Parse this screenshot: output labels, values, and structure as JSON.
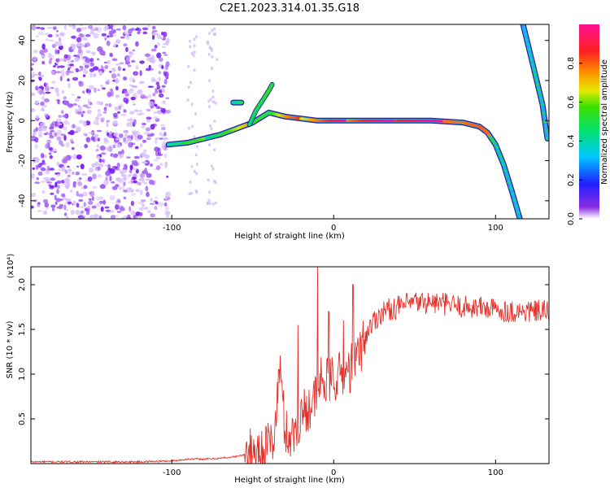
{
  "title": "C2E1.2023.314.01.35.G18",
  "colors": {
    "signal_line": "#e8302a",
    "speckle_purple": "#7a1ff0",
    "axis": "#000000"
  },
  "chart_data": [
    {
      "type": "heatmap",
      "id": "spectrogram",
      "xlabel": "Height of straight line (km)",
      "ylabel": "Frequency (Hz)",
      "xlim": [
        -187,
        133
      ],
      "ylim": [
        -49,
        48
      ],
      "xticks": [
        -100,
        0,
        100
      ],
      "yticks": [
        -40,
        -20,
        0,
        20,
        40
      ],
      "colorbar": {
        "label": "Normalized spectral amplitude",
        "range": [
          0.0,
          1.0
        ],
        "ticks": [
          0.0,
          0.2,
          0.4,
          0.6,
          0.8
        ],
        "colormap": "purple-blue-cyan-green-yellow-orange-red-pink"
      },
      "noise_region_x": [
        -187,
        -102
      ],
      "main_trace": {
        "x": [
          -102,
          -90,
          -80,
          -70,
          -60,
          -50,
          -40,
          -30,
          -20,
          -10,
          0,
          20,
          40,
          60,
          80,
          90,
          95,
          100,
          105,
          110,
          115
        ],
        "y": [
          -12,
          -11,
          -9,
          -7,
          -4,
          -1,
          4,
          2,
          1,
          0,
          0,
          0,
          0,
          0,
          -1,
          -3,
          -6,
          -12,
          -22,
          -35,
          -49
        ],
        "amplitude": [
          0.45,
          0.5,
          0.5,
          0.55,
          0.6,
          0.65,
          0.55,
          0.7,
          0.75,
          0.8,
          0.85,
          0.9,
          0.95,
          0.95,
          0.8,
          0.75,
          0.7,
          0.55,
          0.5,
          0.4,
          0.35
        ]
      },
      "branch_trace": {
        "x": [
          -52,
          -48,
          -44,
          -40,
          -38
        ],
        "y": [
          -2,
          5,
          10,
          15,
          18
        ],
        "amplitude": [
          0.5,
          0.5,
          0.45,
          0.45,
          0.4
        ]
      },
      "blob": {
        "x": [
          -62,
          -57
        ],
        "y": [
          9,
          9
        ],
        "amplitude": 0.4
      },
      "right_trace": {
        "x": [
          117,
          120,
          123,
          126,
          129,
          132
        ],
        "y": [
          48,
          38,
          28,
          18,
          8,
          -9
        ],
        "amplitude": [
          0.35,
          0.4,
          0.4,
          0.45,
          0.4,
          0.35
        ]
      }
    },
    {
      "type": "line",
      "id": "snr",
      "xlabel": "Height of straight line (km)",
      "ylabel": "SNR (10 * v/v)",
      "multiplier": "(x10⁴)",
      "xlim": [
        -187,
        133
      ],
      "ylim": [
        0,
        2.2
      ],
      "xticks": [
        -100,
        0,
        100
      ],
      "yticks": [
        0.5,
        1.0,
        1.5,
        2.0
      ],
      "series": [
        {
          "x": [
            -187,
            -150,
            -120,
            -100,
            -90,
            -80,
            -70,
            -60,
            -50,
            -45,
            -40,
            -38,
            -36,
            -34,
            -33,
            -30,
            -25,
            -20,
            -15,
            -10,
            -8,
            -5,
            0,
            5,
            10,
            13,
            15,
            17,
            20,
            25,
            30,
            40,
            50,
            60,
            70,
            80,
            90,
            100,
            110,
            120,
            133
          ],
          "values": [
            0.02,
            0.02,
            0.02,
            0.03,
            0.05,
            0.05,
            0.06,
            0.08,
            0.12,
            0.15,
            0.2,
            0.25,
            0.4,
            0.9,
            1.05,
            0.35,
            0.3,
            0.55,
            0.65,
            0.75,
            0.95,
            0.9,
            0.95,
            1.0,
            1.05,
            1.15,
            1.2,
            1.3,
            1.45,
            1.6,
            1.7,
            1.75,
            1.8,
            1.8,
            1.78,
            1.75,
            1.75,
            1.72,
            1.7,
            1.7,
            1.7
          ]
        }
      ],
      "spikes": [
        {
          "x": -34,
          "value": 1.05
        },
        {
          "x": -10,
          "value": 2.2
        },
        {
          "x": 12,
          "value": 2.0
        },
        {
          "x": -22,
          "value": 1.55
        },
        {
          "x": -3,
          "value": 1.7
        },
        {
          "x": 6,
          "value": 1.6
        }
      ]
    }
  ]
}
